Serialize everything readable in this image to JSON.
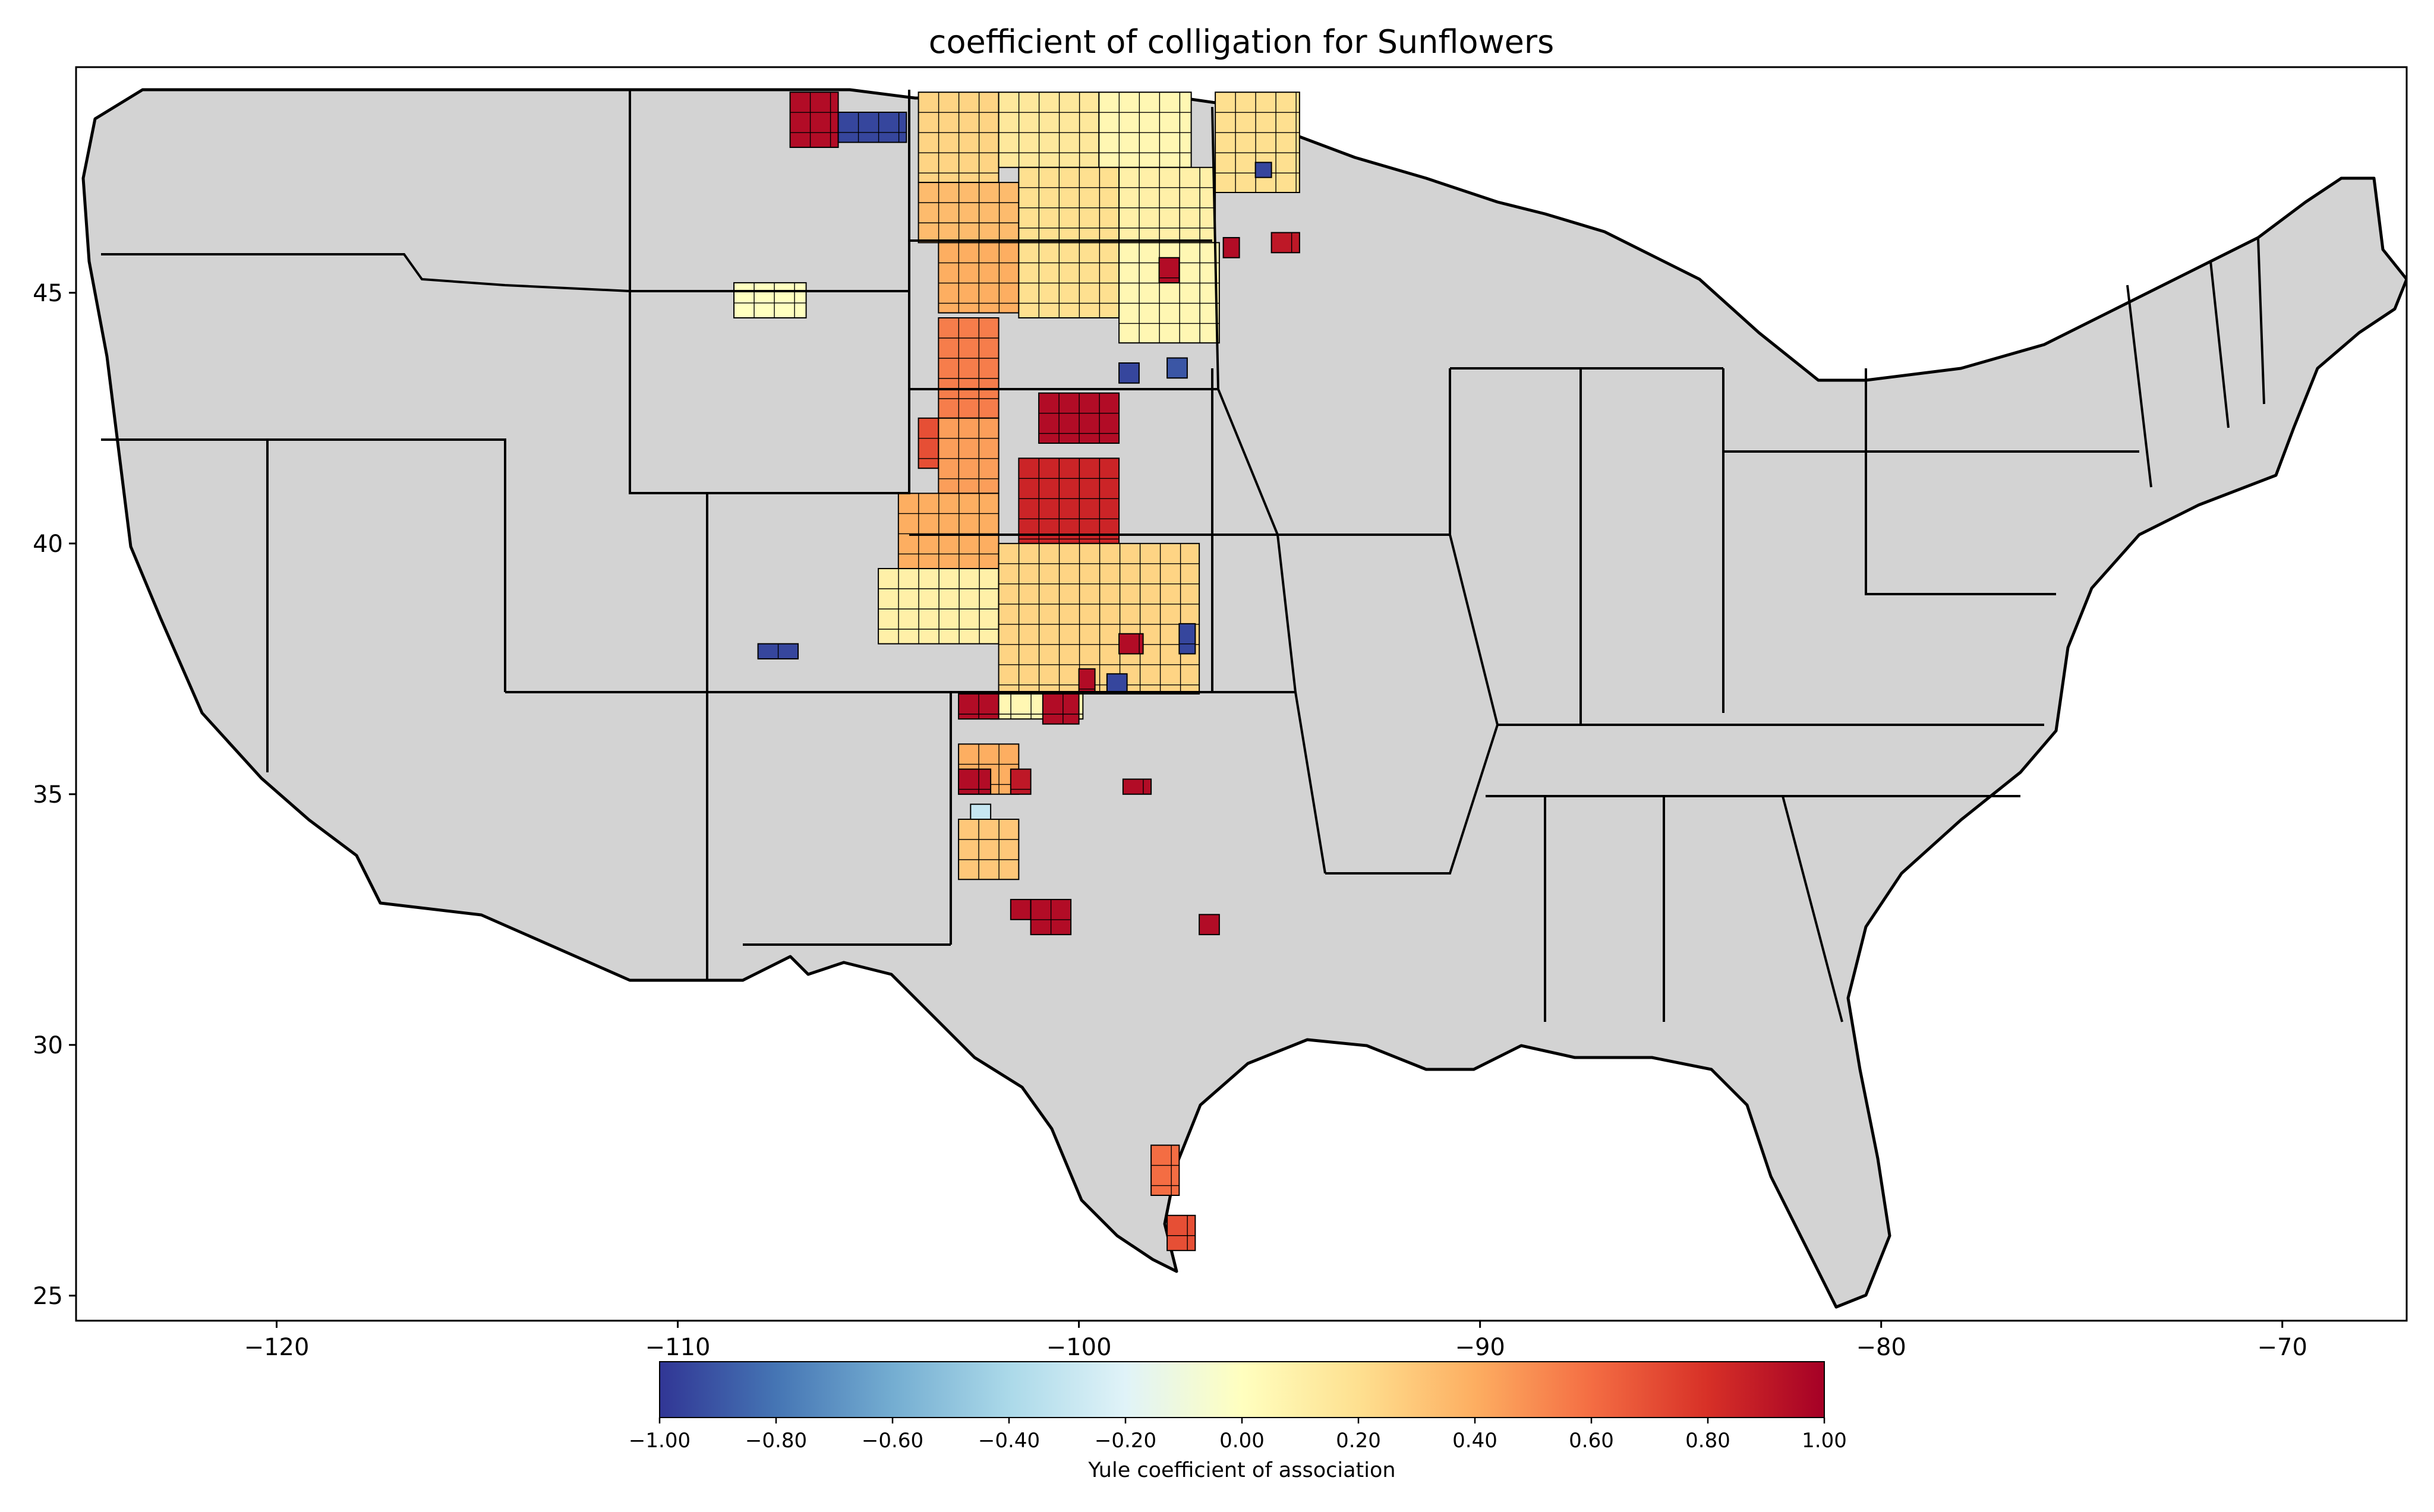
{
  "title": "coefficient of colligation for Sunflowers",
  "map": {
    "projection": "plate-carree",
    "xlim": [
      -125,
      -66.9
    ],
    "ylim": [
      24.5,
      49.5
    ],
    "x_ticks": [
      -120,
      -110,
      -100,
      -90,
      -80,
      -70
    ],
    "y_ticks": [
      25,
      30,
      35,
      40,
      45
    ],
    "x_tick_labels": [
      "−120",
      "−110",
      "−100",
      "−90",
      "−80",
      "−70"
    ],
    "y_tick_labels": [
      "25",
      "30",
      "35",
      "40",
      "45"
    ],
    "background_color": "#d3d3d3",
    "county_edge_color": "#000000"
  },
  "colorbar": {
    "label": "Yule coefficient of association",
    "colormap": "RdYlBu_r",
    "range": [
      -1.0,
      1.0
    ],
    "ticks": [
      -1.0,
      -0.8,
      -0.6,
      -0.4,
      -0.2,
      0.0,
      0.2,
      0.4,
      0.6,
      0.8,
      1.0
    ],
    "tick_labels": [
      "−1.00",
      "−0.80",
      "−0.60",
      "−0.40",
      "−0.20",
      "0.00",
      "0.20",
      "0.40",
      "0.60",
      "0.80",
      "1.00"
    ],
    "stops": [
      "#313695",
      "#4575b4",
      "#74add1",
      "#abd9e9",
      "#e0f3f8",
      "#ffffbf",
      "#fee090",
      "#fdae61",
      "#f46d43",
      "#d73027",
      "#a50026"
    ]
  },
  "chart_data": {
    "type": "choropleth",
    "value_name": "Yule coefficient of association",
    "regions": [
      {
        "lon": [
          -107.2,
          -106.0
        ],
        "lat": [
          47.9,
          49.0
        ],
        "value": 0.95
      },
      {
        "lon": [
          -106.0,
          -104.3
        ],
        "lat": [
          48.0,
          48.6
        ],
        "value": -0.95
      },
      {
        "lon": [
          -104.0,
          -102.0
        ],
        "lat": [
          47.2,
          49.0
        ],
        "value": 0.25
      },
      {
        "lon": [
          -102.0,
          -99.5
        ],
        "lat": [
          47.5,
          49.0
        ],
        "value": 0.15
      },
      {
        "lon": [
          -99.5,
          -97.2
        ],
        "lat": [
          47.5,
          49.0
        ],
        "value": 0.05
      },
      {
        "lon": [
          -104.0,
          -101.5
        ],
        "lat": [
          46.0,
          47.2
        ],
        "value": 0.35
      },
      {
        "lon": [
          -101.5,
          -99.0
        ],
        "lat": [
          46.0,
          47.5
        ],
        "value": 0.2
      },
      {
        "lon": [
          -99.0,
          -96.6
        ],
        "lat": [
          46.0,
          47.5
        ],
        "value": 0.1
      },
      {
        "lon": [
          -96.6,
          -94.5
        ],
        "lat": [
          47.0,
          49.0
        ],
        "value": 0.2
      },
      {
        "lon": [
          -95.6,
          -95.2
        ],
        "lat": [
          47.3,
          47.6
        ],
        "value": -0.95
      },
      {
        "lon": [
          -95.2,
          -94.5
        ],
        "lat": [
          45.8,
          46.2
        ],
        "value": 0.9
      },
      {
        "lon": [
          -96.4,
          -96.0
        ],
        "lat": [
          45.7,
          46.1
        ],
        "value": 0.95
      },
      {
        "lon": [
          -103.5,
          -101.5
        ],
        "lat": [
          44.6,
          46.0
        ],
        "value": 0.4
      },
      {
        "lon": [
          -101.5,
          -99.0
        ],
        "lat": [
          44.5,
          46.0
        ],
        "value": 0.2
      },
      {
        "lon": [
          -99.0,
          -96.5
        ],
        "lat": [
          44.0,
          46.0
        ],
        "value": 0.05
      },
      {
        "lon": [
          -98.0,
          -97.5
        ],
        "lat": [
          45.2,
          45.7
        ],
        "value": 0.95
      },
      {
        "lon": [
          -99.0,
          -98.5
        ],
        "lat": [
          43.2,
          43.6
        ],
        "value": -0.95
      },
      {
        "lon": [
          -97.8,
          -97.3
        ],
        "lat": [
          43.3,
          43.7
        ],
        "value": -0.9
      },
      {
        "lon": [
          -103.5,
          -102.0
        ],
        "lat": [
          42.5,
          44.5
        ],
        "value": 0.55
      },
      {
        "lon": [
          -101.0,
          -99.0
        ],
        "lat": [
          42.0,
          43.0
        ],
        "value": 0.95
      },
      {
        "lon": [
          -104.0,
          -103.5
        ],
        "lat": [
          41.5,
          42.5
        ],
        "value": 0.7
      },
      {
        "lon": [
          -103.5,
          -102.0
        ],
        "lat": [
          41.0,
          42.5
        ],
        "value": 0.45
      },
      {
        "lon": [
          -101.5,
          -99.0
        ],
        "lat": [
          40.0,
          41.7
        ],
        "value": 0.85
      },
      {
        "lon": [
          -104.5,
          -102.0
        ],
        "lat": [
          39.5,
          41.0
        ],
        "value": 0.4
      },
      {
        "lon": [
          -105.0,
          -102.0
        ],
        "lat": [
          38.0,
          39.5
        ],
        "value": 0.1
      },
      {
        "lon": [
          -102.0,
          -97.0
        ],
        "lat": [
          37.0,
          40.0
        ],
        "value": 0.25
      },
      {
        "lon": [
          -97.5,
          -97.1
        ],
        "lat": [
          37.8,
          38.4
        ],
        "value": -0.95
      },
      {
        "lon": [
          -99.0,
          -98.4
        ],
        "lat": [
          37.8,
          38.2
        ],
        "value": 0.95
      },
      {
        "lon": [
          -100.0,
          -99.6
        ],
        "lat": [
          37.0,
          37.5
        ],
        "value": 0.95
      },
      {
        "lon": [
          -99.3,
          -98.8
        ],
        "lat": [
          37.0,
          37.4
        ],
        "value": -0.95
      },
      {
        "lon": [
          -102.2,
          -99.9
        ],
        "lat": [
          36.5,
          37.0
        ],
        "value": 0.05
      },
      {
        "lon": [
          -103.0,
          -102.0
        ],
        "lat": [
          36.5,
          37.0
        ],
        "value": 0.95
      },
      {
        "lon": [
          -100.9,
          -100.0
        ],
        "lat": [
          36.4,
          37.0
        ],
        "value": 0.95
      },
      {
        "lon": [
          -103.0,
          -101.5
        ],
        "lat": [
          35.0,
          36.0
        ],
        "value": 0.4
      },
      {
        "lon": [
          -103.0,
          -102.2
        ],
        "lat": [
          35.0,
          35.5
        ],
        "value": 0.95
      },
      {
        "lon": [
          -101.7,
          -101.2
        ],
        "lat": [
          35.0,
          35.5
        ],
        "value": 0.9
      },
      {
        "lon": [
          -98.9,
          -98.2
        ],
        "lat": [
          35.0,
          35.3
        ],
        "value": 0.95
      },
      {
        "lon": [
          -102.7,
          -102.2
        ],
        "lat": [
          34.5,
          34.8
        ],
        "value": -0.3
      },
      {
        "lon": [
          -103.0,
          -101.5
        ],
        "lat": [
          33.3,
          34.5
        ],
        "value": 0.3
      },
      {
        "lon": [
          -101.7,
          -101.2
        ],
        "lat": [
          32.5,
          32.9
        ],
        "value": 0.95
      },
      {
        "lon": [
          -101.2,
          -100.2
        ],
        "lat": [
          32.2,
          32.9
        ],
        "value": 0.95
      },
      {
        "lon": [
          -97.0,
          -96.5
        ],
        "lat": [
          32.2,
          32.6
        ],
        "value": 0.95
      },
      {
        "lon": [
          -108.0,
          -107.0
        ],
        "lat": [
          37.7,
          38.0
        ],
        "value": -0.95
      },
      {
        "lon": [
          -108.6,
          -106.8
        ],
        "lat": [
          44.5,
          45.2
        ],
        "value": 0.0
      },
      {
        "lon": [
          -98.2,
          -97.5
        ],
        "lat": [
          27.0,
          28.0
        ],
        "value": 0.6
      },
      {
        "lon": [
          -97.8,
          -97.1
        ],
        "lat": [
          25.9,
          26.6
        ],
        "value": 0.7
      }
    ]
  }
}
